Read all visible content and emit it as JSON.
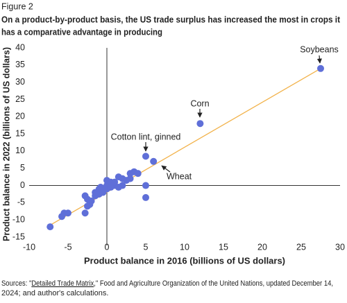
{
  "chart_data": {
    "type": "scatter",
    "figure_label": "Figure 2",
    "title": [
      "On a product-by-product basis, the US trade surplus has increased the most in crops it",
      "has a comparative advantage in producing"
    ],
    "x_label": "Product balance in 2016 (billions of US dollars)",
    "y_label": "Product balance in 2022 (billions of US dollars)",
    "xlim": [
      -10,
      30
    ],
    "xticks": [
      -10,
      -5,
      0,
      5,
      10,
      15,
      20,
      25,
      30
    ],
    "ylim": [
      -15,
      40
    ],
    "yticks": [
      -15,
      -10,
      -5,
      0,
      5,
      10,
      15,
      20,
      25,
      30,
      35,
      40
    ],
    "color": "#5f6fd8",
    "x": [
      27.5,
      12,
      5,
      6,
      5,
      5,
      -7.3,
      -5.5,
      -5.8,
      -5,
      -2.8,
      -2.5,
      -2.2,
      -2.5,
      -2.8,
      -2,
      -1.5,
      -1,
      -1.5,
      -0.5,
      0,
      0,
      0,
      0.5,
      1,
      1.5,
      2,
      2,
      3,
      3.5,
      4,
      3,
      1,
      -0.8,
      -1,
      0.5,
      2.5,
      1.5
    ],
    "y": [
      34,
      18,
      8.5,
      7,
      0,
      -3.5,
      -12,
      -8,
      -9,
      -8,
      -8,
      -6,
      -5.5,
      -4,
      -3,
      -4.5,
      -3,
      -2.5,
      -2,
      -2,
      -1,
      0,
      1.5,
      1,
      0,
      2.5,
      2,
      0,
      3.5,
      4,
      3.5,
      2,
      1,
      -0.5,
      -1,
      -0.5,
      1.5,
      -0.5
    ],
    "fit_line": {
      "x": [
        -7.3,
        27.5
      ],
      "y": [
        -11.5,
        34
      ],
      "color": "#f2b24a"
    },
    "annotations": [
      "Soybeans",
      "Corn",
      "Cotton lint, ginned",
      "Wheat"
    ],
    "source": [
      "Sources: \"",
      "Detailed Trade Matrix",
      ",\" Food and Agriculture Organization of the United Nations, updated December 14,",
      "2024; and author's calculations."
    ]
  }
}
